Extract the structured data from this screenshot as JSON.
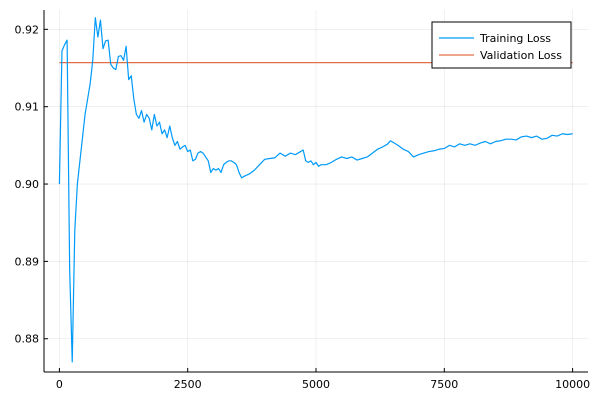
{
  "chart_data": {
    "type": "line",
    "title": "",
    "xlabel": "",
    "ylabel": "",
    "xlim": [
      -300,
      10300
    ],
    "ylim": [
      0.8757,
      0.9225
    ],
    "grid": true,
    "legend_position": "top-right",
    "xticks": [
      0,
      2500,
      5000,
      7500,
      10000
    ],
    "xtick_labels": [
      "0",
      "2500",
      "5000",
      "7500",
      "10000"
    ],
    "yticks": [
      0.88,
      0.89,
      0.9,
      0.91,
      0.92
    ],
    "ytick_labels": [
      "0.88",
      "0.89",
      "0.90",
      "0.91",
      "0.92"
    ],
    "series": [
      {
        "name": "Training Loss",
        "color": "#009af9",
        "points": [
          [
            0,
            0.9
          ],
          [
            50,
            0.9172
          ],
          [
            100,
            0.918
          ],
          [
            150,
            0.9186
          ],
          [
            200,
            0.889
          ],
          [
            250,
            0.877
          ],
          [
            300,
            0.894
          ],
          [
            350,
            0.9
          ],
          [
            400,
            0.903
          ],
          [
            450,
            0.906
          ],
          [
            500,
            0.909
          ],
          [
            550,
            0.911
          ],
          [
            600,
            0.913
          ],
          [
            650,
            0.916
          ],
          [
            700,
            0.9215
          ],
          [
            750,
            0.919
          ],
          [
            800,
            0.9212
          ],
          [
            850,
            0.9175
          ],
          [
            900,
            0.9185
          ],
          [
            950,
            0.9186
          ],
          [
            1000,
            0.9155
          ],
          [
            1050,
            0.915
          ],
          [
            1100,
            0.9148
          ],
          [
            1150,
            0.9165
          ],
          [
            1200,
            0.9166
          ],
          [
            1250,
            0.916
          ],
          [
            1300,
            0.9178
          ],
          [
            1350,
            0.9135
          ],
          [
            1400,
            0.914
          ],
          [
            1450,
            0.911
          ],
          [
            1500,
            0.909
          ],
          [
            1550,
            0.9085
          ],
          [
            1600,
            0.9095
          ],
          [
            1650,
            0.908
          ],
          [
            1700,
            0.909
          ],
          [
            1750,
            0.9085
          ],
          [
            1800,
            0.907
          ],
          [
            1850,
            0.909
          ],
          [
            1900,
            0.9075
          ],
          [
            1950,
            0.908
          ],
          [
            2000,
            0.9065
          ],
          [
            2050,
            0.907
          ],
          [
            2100,
            0.906
          ],
          [
            2150,
            0.9075
          ],
          [
            2200,
            0.906
          ],
          [
            2250,
            0.905
          ],
          [
            2300,
            0.9055
          ],
          [
            2350,
            0.9045
          ],
          [
            2400,
            0.9048
          ],
          [
            2450,
            0.905
          ],
          [
            2500,
            0.9042
          ],
          [
            2550,
            0.9044
          ],
          [
            2600,
            0.903
          ],
          [
            2650,
            0.9032
          ],
          [
            2700,
            0.904
          ],
          [
            2750,
            0.9042
          ],
          [
            2800,
            0.904
          ],
          [
            2850,
            0.9035
          ],
          [
            2900,
            0.903
          ],
          [
            2950,
            0.9015
          ],
          [
            3000,
            0.902
          ],
          [
            3050,
            0.9018
          ],
          [
            3100,
            0.902
          ],
          [
            3150,
            0.9015
          ],
          [
            3200,
            0.9025
          ],
          [
            3250,
            0.9028
          ],
          [
            3300,
            0.903
          ],
          [
            3350,
            0.903
          ],
          [
            3400,
            0.9028
          ],
          [
            3450,
            0.9025
          ],
          [
            3500,
            0.9015
          ],
          [
            3550,
            0.9008
          ],
          [
            3600,
            0.901
          ],
          [
            3700,
            0.9013
          ],
          [
            3800,
            0.9018
          ],
          [
            3900,
            0.9025
          ],
          [
            4000,
            0.9032
          ],
          [
            4100,
            0.9033
          ],
          [
            4200,
            0.9034
          ],
          [
            4300,
            0.904
          ],
          [
            4400,
            0.9036
          ],
          [
            4500,
            0.904
          ],
          [
            4600,
            0.9038
          ],
          [
            4700,
            0.9042
          ],
          [
            4750,
            0.9044
          ],
          [
            4800,
            0.903
          ],
          [
            4850,
            0.9028
          ],
          [
            4900,
            0.903
          ],
          [
            4950,
            0.9025
          ],
          [
            5000,
            0.9028
          ],
          [
            5050,
            0.9023
          ],
          [
            5100,
            0.9025
          ],
          [
            5200,
            0.9025
          ],
          [
            5300,
            0.9028
          ],
          [
            5400,
            0.9032
          ],
          [
            5500,
            0.9035
          ],
          [
            5600,
            0.9033
          ],
          [
            5700,
            0.9035
          ],
          [
            5800,
            0.9031
          ],
          [
            5900,
            0.9033
          ],
          [
            6000,
            0.9035
          ],
          [
            6100,
            0.904
          ],
          [
            6200,
            0.9045
          ],
          [
            6300,
            0.9048
          ],
          [
            6400,
            0.9052
          ],
          [
            6450,
            0.9056
          ],
          [
            6500,
            0.9054
          ],
          [
            6600,
            0.905
          ],
          [
            6700,
            0.9045
          ],
          [
            6800,
            0.9042
          ],
          [
            6900,
            0.9035
          ],
          [
            7000,
            0.9038
          ],
          [
            7100,
            0.904
          ],
          [
            7200,
            0.9042
          ],
          [
            7300,
            0.9043
          ],
          [
            7400,
            0.9045
          ],
          [
            7500,
            0.9046
          ],
          [
            7600,
            0.905
          ],
          [
            7700,
            0.9048
          ],
          [
            7800,
            0.9052
          ],
          [
            7900,
            0.905
          ],
          [
            8000,
            0.9052
          ],
          [
            8100,
            0.905
          ],
          [
            8200,
            0.9053
          ],
          [
            8300,
            0.9055
          ],
          [
            8400,
            0.9052
          ],
          [
            8500,
            0.9055
          ],
          [
            8600,
            0.9056
          ],
          [
            8700,
            0.9058
          ],
          [
            8800,
            0.9058
          ],
          [
            8900,
            0.9057
          ],
          [
            9000,
            0.9061
          ],
          [
            9100,
            0.9062
          ],
          [
            9200,
            0.906
          ],
          [
            9300,
            0.9062
          ],
          [
            9400,
            0.9058
          ],
          [
            9500,
            0.9059
          ],
          [
            9600,
            0.9063
          ],
          [
            9700,
            0.9062
          ],
          [
            9800,
            0.9065
          ],
          [
            9900,
            0.9064
          ],
          [
            10000,
            0.9065
          ]
        ]
      },
      {
        "name": "Validation Loss",
        "color": "#e26f46",
        "points": [
          [
            0,
            0.9157
          ],
          [
            10000,
            0.9157
          ]
        ]
      }
    ]
  }
}
